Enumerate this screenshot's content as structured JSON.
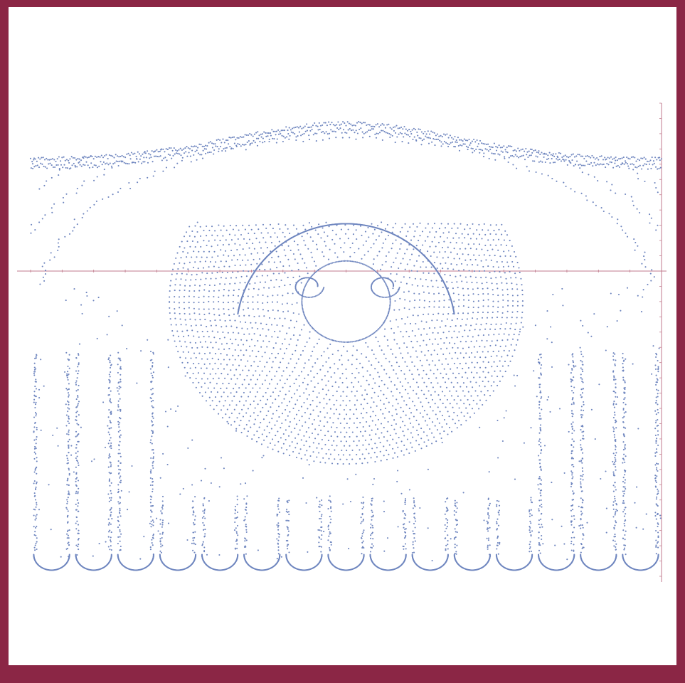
{
  "colors": {
    "border": "#8b2645",
    "background": "#ffffff",
    "points": "#6f86bf",
    "axes": "#c07a8c"
  },
  "chart_data": {
    "type": "scatter",
    "title": "",
    "xlabel": "",
    "ylabel": "",
    "grid": false,
    "legend": "none",
    "axes_labels_visible": false,
    "xlim": [
      -1.0,
      1.0
    ],
    "ylim": [
      -1.0,
      0.55
    ],
    "structure": {
      "top_band": {
        "edge_amplitude": 0.35,
        "edge_width": 0.35,
        "base_y": 0.35,
        "bottom_y": 0.0
      },
      "dome": {
        "center": [
          0.0,
          -0.1
        ],
        "radius": 0.56,
        "top_y": 0.16,
        "bottom_y": -0.88
      },
      "inner_ring": {
        "center": [
          0.0,
          -0.1
        ],
        "radius": 0.14
      },
      "columns": {
        "count": 15,
        "bottom_y": -0.98
      }
    }
  }
}
